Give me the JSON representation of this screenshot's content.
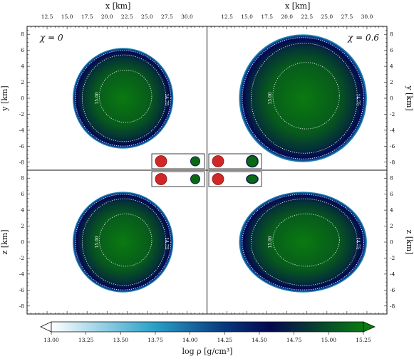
{
  "chart_data": {
    "type": "heatmap",
    "description": "Four-panel density cross sections of neutron-star models",
    "panels": [
      {
        "id": "xy-chi0",
        "plane": "x-y",
        "label": "χ = 0",
        "center_x_km": 22.0,
        "center_y_km": 0.0,
        "radius_km": 6.3,
        "shape": "circle",
        "contours": [
          15.0,
          14.75
        ]
      },
      {
        "id": "xy-chi06",
        "plane": "x-y",
        "label": "χ = 0.6",
        "center_x_km": 22.0,
        "center_y_km": 0.0,
        "radius_km": 8.0,
        "shape": "circle",
        "contours": [
          15.0,
          14.75
        ]
      },
      {
        "id": "xz-chi0",
        "plane": "x-z",
        "label": "",
        "center_x_km": 22.0,
        "center_z_km": 0.0,
        "radius_km": 6.3,
        "shape": "circle",
        "contours": [
          15.0,
          14.75
        ]
      },
      {
        "id": "xz-chi06",
        "plane": "x-z",
        "label": "",
        "center_x_km": 22.0,
        "center_z_km": 0.0,
        "radius_x_km": 8.0,
        "radius_z_km": 6.3,
        "shape": "ellipse",
        "contours": [
          15.0,
          14.75
        ]
      }
    ],
    "x_axis": {
      "label": "x [km]",
      "range": [
        10.0,
        32.5
      ],
      "ticks": [
        12.5,
        15.0,
        17.5,
        20.0,
        22.5,
        25.0,
        27.5,
        30.0
      ]
    },
    "y_axis": {
      "label": "y [km]",
      "range": [
        -9,
        9
      ],
      "ticks": [
        -8,
        -6,
        -4,
        -2,
        0,
        2,
        4,
        6,
        8
      ]
    },
    "z_axis": {
      "label": "z [km]",
      "range": [
        -9,
        9
      ],
      "ticks": [
        -8,
        -6,
        -4,
        -2,
        0,
        2,
        4,
        6,
        8
      ]
    },
    "colorbar": {
      "label": "log ρ [g/cm³]",
      "range": [
        13.0,
        15.25
      ],
      "ticks": [
        "13.00",
        "13.25",
        "13.50",
        "13.75",
        "14.00",
        "14.25",
        "14.50",
        "14.75",
        "15.00",
        "15.25"
      ],
      "extend": "both",
      "colors": [
        "#ffffff",
        "#2aa0c8",
        "#050850",
        "#0a7a10"
      ]
    },
    "contour_labels": [
      "15.00",
      "14.75"
    ]
  }
}
